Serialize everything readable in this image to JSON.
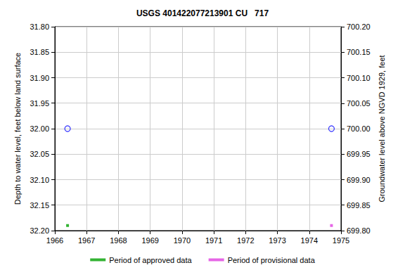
{
  "chart_data": {
    "type": "scatter",
    "title": "USGS 401422077213901 CU   717",
    "y_label": "Depth to water level, feet below land surface",
    "y2_label": "Groundwater level above NGVD 1929, feet",
    "xlim": [
      1966,
      1975
    ],
    "xticks": [
      1966,
      1967,
      1968,
      1969,
      1970,
      1971,
      1972,
      1973,
      1974,
      1975
    ],
    "ylim": [
      32.2,
      31.8
    ],
    "yticks": [
      {
        "value": 31.8,
        "label": "31.80"
      },
      31.85,
      {
        "value": 31.9,
        "label": "31.90"
      },
      31.95,
      {
        "value": 32.0,
        "label": "32.00"
      },
      32.05,
      {
        "value": 32.1,
        "label": "32.10"
      },
      32.15,
      {
        "value": 32.2,
        "label": "32.20"
      }
    ],
    "y2lim": [
      699.8,
      700.2
    ],
    "y2ticks": [
      {
        "value": 699.8,
        "label": "699.80"
      },
      699.85,
      {
        "value": 699.9,
        "label": "699.90"
      },
      699.95,
      {
        "value": 700.0,
        "label": "700.00"
      },
      700.05,
      {
        "value": 700.1,
        "label": "700.10"
      },
      700.15,
      {
        "value": 700.2,
        "label": "700.20"
      }
    ],
    "grid": true,
    "legend": "bottom",
    "series": [
      {
        "type": "scatter",
        "marker": "circle_open",
        "color": "#0000ff",
        "x": [
          1966.4,
          1974.7
        ],
        "values": [
          32.0,
          32.0
        ]
      },
      {
        "name": "Period of approved data",
        "type": "scatter",
        "marker": "square",
        "color": "#00a000",
        "x": [
          1966.4
        ],
        "values": [
          32.19
        ]
      },
      {
        "name": "Period of provisional data",
        "type": "scatter",
        "marker": "square",
        "color": "#e040e0",
        "x": [
          1974.7
        ],
        "values": [
          32.19
        ]
      }
    ]
  }
}
